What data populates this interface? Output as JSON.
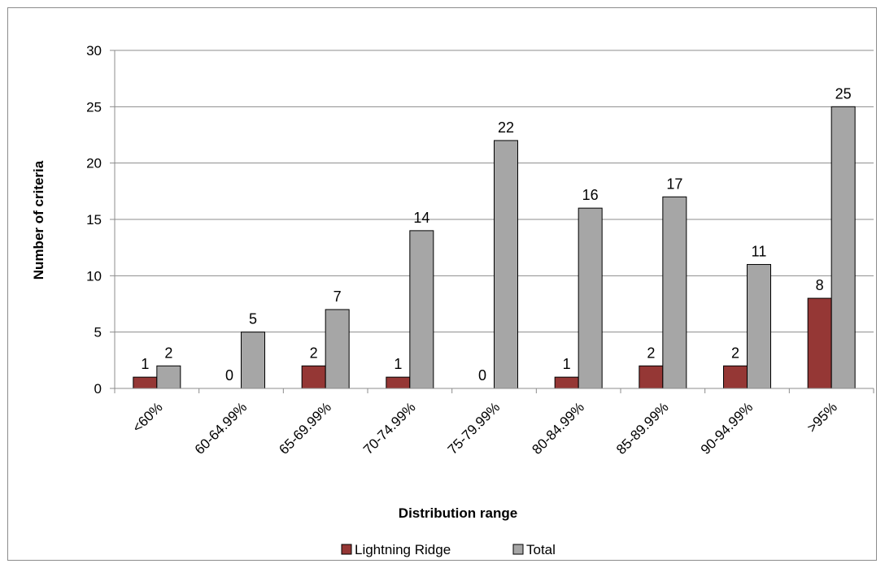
{
  "chart_data": {
    "type": "bar",
    "title": "",
    "xlabel": "Distribution range",
    "ylabel": "Number of criteria",
    "ylim": [
      0,
      30
    ],
    "yticks": [
      0,
      5,
      10,
      15,
      20,
      25,
      30
    ],
    "grid": true,
    "legend_position": "bottom",
    "categories": [
      "<60%",
      "60-64.99%",
      "65-69.99%",
      "70-74.99%",
      "75-79.99%",
      "80-84.99%",
      "85-89.99%",
      "90-94.99%",
      ">95%"
    ],
    "series": [
      {
        "name": "Lightning Ridge",
        "color": "#953735",
        "values": [
          1,
          0,
          2,
          1,
          0,
          1,
          2,
          2,
          8
        ]
      },
      {
        "name": "Total",
        "color": "#a6a6a6",
        "values": [
          2,
          5,
          7,
          14,
          22,
          16,
          17,
          11,
          25
        ]
      }
    ]
  }
}
